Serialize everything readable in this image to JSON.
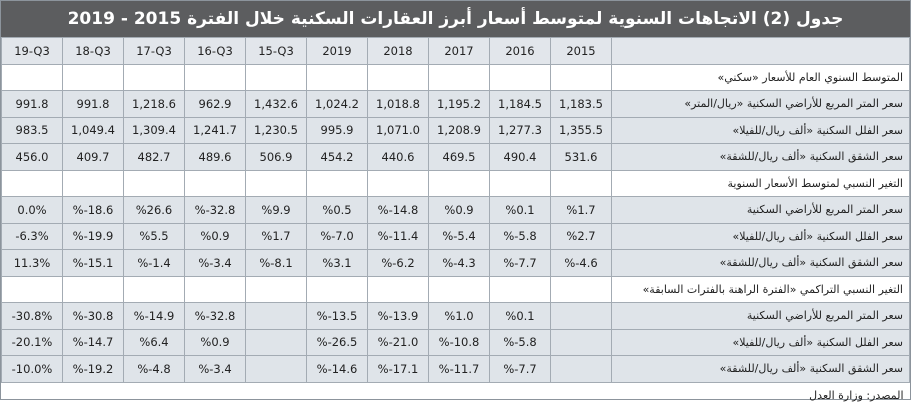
{
  "title": "جدول (2) الاتجاهات السنوية لمتوسط أسعار أبرز العقارات السكنية خلال الفترة 2015 - 2019",
  "columns": [
    "2015",
    "2016",
    "2017",
    "2018",
    "2019",
    "15-Q3",
    "16-Q3",
    "17-Q3",
    "18-Q3",
    "19-Q3"
  ],
  "sections": [
    {
      "heading": "المتوسط السنوي العام للأسعار «سكني»",
      "rows": [
        {
          "label": "سعر المتر المربع للأراضي السكنية «ريال/المتر»",
          "values": [
            "1,183.5",
            "1,184.5",
            "1,195.2",
            "1,018.8",
            "1,024.2",
            "1,432.6",
            "962.9",
            "1,218.6",
            "991.8",
            "991.8"
          ]
        },
        {
          "label": "سعر الفلل السكنية «ألف ريال/للفيلا»",
          "values": [
            "1,355.5",
            "1,277.3",
            "1,208.9",
            "1,071.0",
            "995.9",
            "1,230.5",
            "1,241.7",
            "1,309.4",
            "1,049.4",
            "983.5"
          ]
        },
        {
          "label": "سعر الشقق السكنية «ألف ريال/للشقة»",
          "values": [
            "531.6",
            "490.4",
            "469.5",
            "440.6",
            "454.2",
            "506.9",
            "489.6",
            "482.7",
            "409.7",
            "456.0"
          ]
        }
      ]
    },
    {
      "heading": "التغير النسبي لمتوسط الأسعار السنوية",
      "rows": [
        {
          "label": "سعر المتر المربع للأراضي السكنية",
          "values": [
            "%1.7",
            "%0.1",
            "%0.9",
            "%-14.8",
            "%0.5",
            "%9.9",
            "%-32.8",
            "%26.6",
            "%-18.6",
            "0.0%"
          ]
        },
        {
          "label": "سعر الفلل السكنية «ألف ريال/للفيلا»",
          "values": [
            "%2.7",
            "%-5.8",
            "%-5.4",
            "%-11.4",
            "%-7.0",
            "%1.7",
            "%0.9",
            "%5.5",
            "%-19.9",
            "-6.3%"
          ]
        },
        {
          "label": "سعر الشقق السكنية «ألف ريال/للشقة»",
          "values": [
            "%-4.6",
            "%-7.7",
            "%-4.3",
            "%-6.2",
            "%3.1",
            "%-8.1",
            "%-3.4",
            "%-1.4",
            "%-15.1",
            "11.3%"
          ]
        }
      ]
    },
    {
      "heading": "التغير النسبي التراكمي «الفترة الراهنة بالفترات السابقة»",
      "rows": [
        {
          "label": "سعر المتر المربع للأراضي السكنية",
          "values": [
            "",
            "%0.1",
            "%1.0",
            "%-13.9",
            "%-13.5",
            "",
            "%-32.8",
            "%-14.9",
            "%-30.8",
            "-30.8%"
          ]
        },
        {
          "label": "سعر الفلل السكنية «ألف ريال/للفيلا»",
          "values": [
            "",
            "%-5.8",
            "%-10.8",
            "%-21.0",
            "%-26.5",
            "",
            "%0.9",
            "%6.4",
            "%-14.7",
            "-20.1%"
          ]
        },
        {
          "label": "سعر الشقق السكنية «ألف ريال/للشقة»",
          "values": [
            "",
            "%-7.7",
            "%-11.7",
            "%-17.1",
            "%-14.6",
            "",
            "%-3.4",
            "%-4.8",
            "%-19.2",
            "-10.0%"
          ]
        }
      ]
    }
  ],
  "source": "المصدر: وزارة العدل",
  "colors": {
    "title_bg": "#5c5d5f",
    "row_bg": "#dfe4e9",
    "border": "#a3abb3"
  }
}
